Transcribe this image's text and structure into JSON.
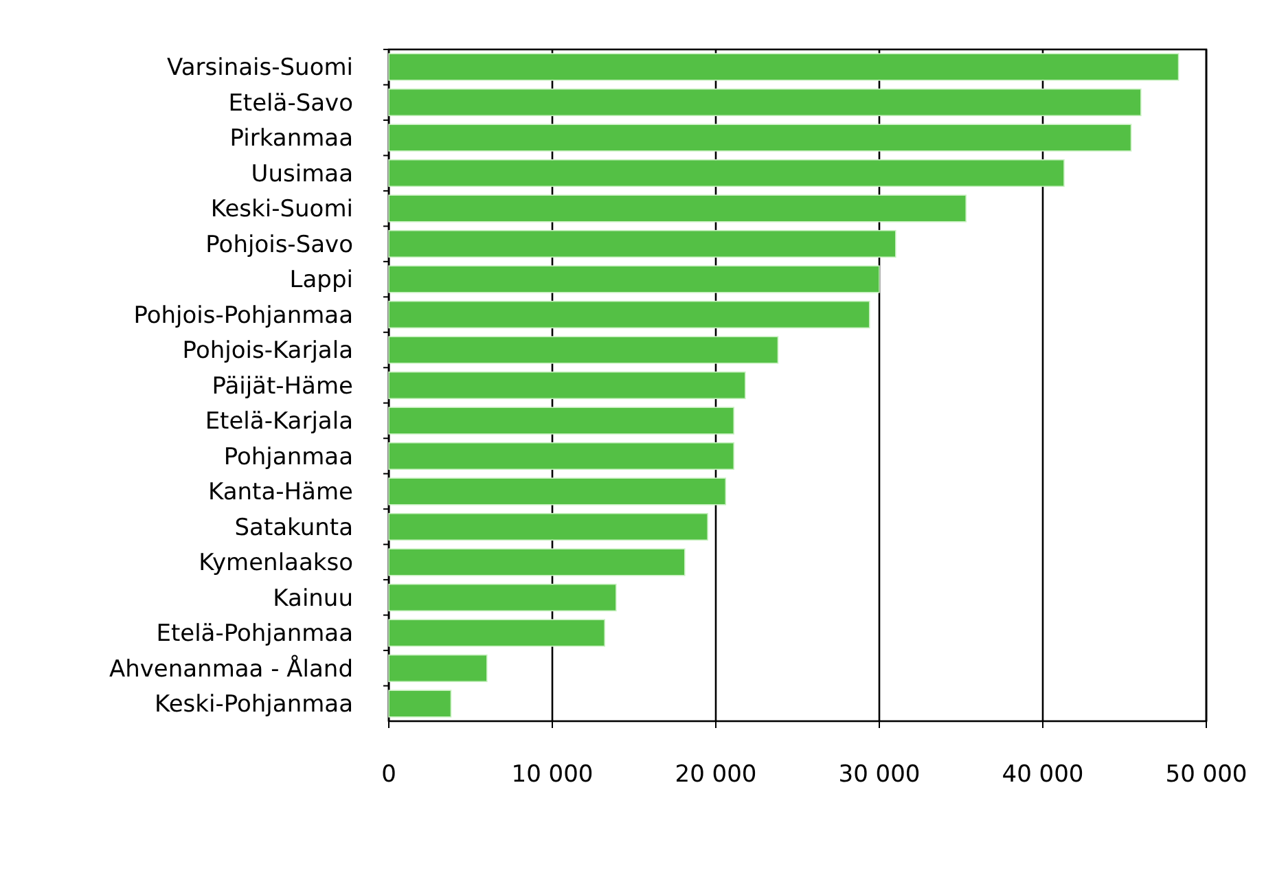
{
  "chart_data": {
    "type": "bar",
    "orientation": "horizontal",
    "categories": [
      "Varsinais-Suomi",
      "Etelä-Savo",
      "Pirkanmaa",
      "Uusimaa",
      "Keski-Suomi",
      "Pohjois-Savo",
      "Lappi",
      "Pohjois-Pohjanmaa",
      "Pohjois-Karjala",
      "Päijät-Häme",
      "Etelä-Karjala",
      "Pohjanmaa",
      "Kanta-Häme",
      "Satakunta",
      "Kymenlaakso",
      "Kainuu",
      "Etelä-Pohjanmaa",
      "Ahvenanmaa - Åland",
      "Keski-Pohjanmaa"
    ],
    "values": [
      48300,
      46000,
      45400,
      41300,
      35300,
      31000,
      30000,
      29400,
      23800,
      21800,
      21100,
      21100,
      20600,
      19500,
      18100,
      13900,
      13200,
      6000,
      3800
    ],
    "color": "#54c045",
    "xlim": [
      0,
      50000
    ],
    "xticks": [
      0,
      {
        "value": 10000,
        "label": "10 000"
      },
      {
        "value": 20000,
        "label": "20 000"
      },
      {
        "value": 30000,
        "label": "30 000"
      },
      {
        "value": 40000,
        "label": "40 000"
      },
      {
        "value": 50000,
        "label": "50 000"
      }
    ],
    "grid": "x"
  }
}
